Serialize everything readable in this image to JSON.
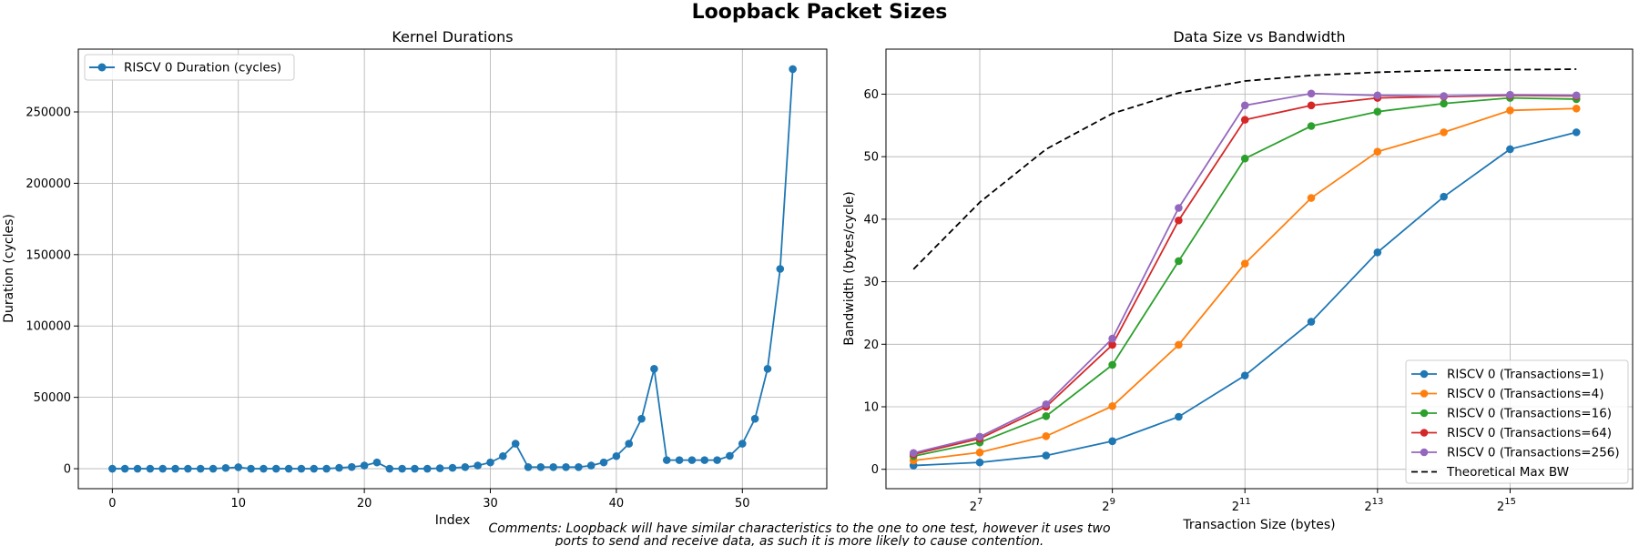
{
  "figure": {
    "title": "Loopback Packet Sizes",
    "comment_line1": "Comments: Loopback will have similar characteristics to the one to one test, however it uses two",
    "comment_line2": "ports to send and receive data, as such it is more likely to cause contention."
  },
  "colors": {
    "blue": "#1f77b4",
    "orange": "#ff7f0e",
    "green": "#2ca02c",
    "red": "#d62728",
    "purple": "#9467bd",
    "black": "#000000",
    "grid": "#b0b0b0"
  },
  "chart_data": [
    {
      "type": "line",
      "title": "Kernel Durations",
      "xlabel": "Index",
      "ylabel": "Duration (cycles)",
      "xlim": [
        -2.7,
        56.7
      ],
      "ylim": [
        -14000,
        294000
      ],
      "xticks": [
        0,
        10,
        20,
        30,
        40,
        50
      ],
      "xtick_labels": [
        "0",
        "10",
        "20",
        "30",
        "40",
        "50"
      ],
      "yticks": [
        0,
        50000,
        100000,
        150000,
        200000,
        250000
      ],
      "ytick_labels": [
        "0",
        "50000",
        "100000",
        "150000",
        "200000",
        "250000"
      ],
      "grid": true,
      "legend_position": "upper left",
      "series": [
        {
          "name": "RISCV 0 Duration (cycles)",
          "color": "#1f77b4",
          "x": [
            0,
            1,
            2,
            3,
            4,
            5,
            6,
            7,
            8,
            9,
            10,
            11,
            12,
            13,
            14,
            15,
            16,
            17,
            18,
            19,
            20,
            21,
            22,
            23,
            24,
            25,
            26,
            27,
            28,
            29,
            30,
            31,
            32,
            33,
            34,
            35,
            36,
            37,
            38,
            39,
            40,
            41,
            42,
            43,
            44,
            45,
            46,
            47,
            48,
            49,
            50,
            51,
            52,
            53,
            54
          ],
          "values": [
            0,
            0,
            0,
            0,
            0,
            0,
            0,
            0,
            0,
            500,
            1000,
            0,
            0,
            0,
            0,
            0,
            0,
            0,
            600,
            1200,
            2200,
            4400,
            0,
            0,
            0,
            0,
            300,
            600,
            1100,
            2200,
            4400,
            8800,
            17500,
            1100,
            1100,
            1100,
            1100,
            1100,
            2200,
            4400,
            8800,
            17500,
            35000,
            70000,
            6000,
            6000,
            6000,
            6000,
            6000,
            9000,
            17500,
            35000,
            70000,
            140000,
            280000
          ]
        }
      ]
    },
    {
      "type": "line",
      "title": "Data Size vs Bandwidth",
      "xlabel": "Transaction Size (bytes)",
      "ylabel": "Bandwidth (bytes/cycle)",
      "xscale": "log2",
      "xlim": [
        48,
        118000
      ],
      "ylim": [
        -3.1,
        67.2
      ],
      "xticks": [
        128,
        512,
        2048,
        8192,
        32768
      ],
      "xtick_labels": [
        {
          "base": "2",
          "exp": "7"
        },
        {
          "base": "2",
          "exp": "9"
        },
        {
          "base": "2",
          "exp": "11"
        },
        {
          "base": "2",
          "exp": "13"
        },
        {
          "base": "2",
          "exp": "15"
        }
      ],
      "yticks": [
        0,
        10,
        20,
        30,
        40,
        50,
        60
      ],
      "ytick_labels": [
        "0",
        "10",
        "20",
        "30",
        "40",
        "50",
        "60"
      ],
      "grid": true,
      "legend_position": "lower right",
      "x": [
        64,
        128,
        256,
        512,
        1024,
        2048,
        4096,
        8192,
        16384,
        32768,
        65536
      ],
      "series": [
        {
          "name": "RISCV 0 (Transactions=1)",
          "color": "#1f77b4",
          "marker": true,
          "values": [
            0.6,
            1.1,
            2.2,
            4.5,
            8.4,
            15.0,
            23.6,
            34.7,
            43.6,
            51.2,
            53.9
          ]
        },
        {
          "name": "RISCV 0 (Transactions=4)",
          "color": "#ff7f0e",
          "marker": true,
          "values": [
            1.4,
            2.7,
            5.3,
            10.1,
            19.9,
            32.9,
            43.4,
            50.8,
            53.9,
            57.4,
            57.7
          ]
        },
        {
          "name": "RISCV 0 (Transactions=16)",
          "color": "#2ca02c",
          "marker": true,
          "values": [
            2.1,
            4.3,
            8.5,
            16.7,
            33.3,
            49.7,
            54.9,
            57.2,
            58.5,
            59.4,
            59.2
          ]
        },
        {
          "name": "RISCV 0 (Transactions=64)",
          "color": "#d62728",
          "marker": true,
          "values": [
            2.4,
            4.9,
            10.0,
            19.9,
            39.8,
            55.9,
            58.2,
            59.4,
            59.6,
            59.8,
            59.7
          ]
        },
        {
          "name": "RISCV 0 (Transactions=256)",
          "color": "#9467bd",
          "marker": true,
          "values": [
            2.6,
            5.2,
            10.4,
            20.9,
            41.8,
            58.2,
            60.1,
            59.8,
            59.7,
            59.9,
            59.8
          ]
        },
        {
          "name": "Theoretical Max BW",
          "color": "#000000",
          "marker": false,
          "dashed": true,
          "values": [
            32.0,
            42.7,
            51.2,
            56.9,
            60.2,
            62.1,
            63.0,
            63.5,
            63.8,
            63.9,
            64.0
          ]
        }
      ]
    }
  ]
}
